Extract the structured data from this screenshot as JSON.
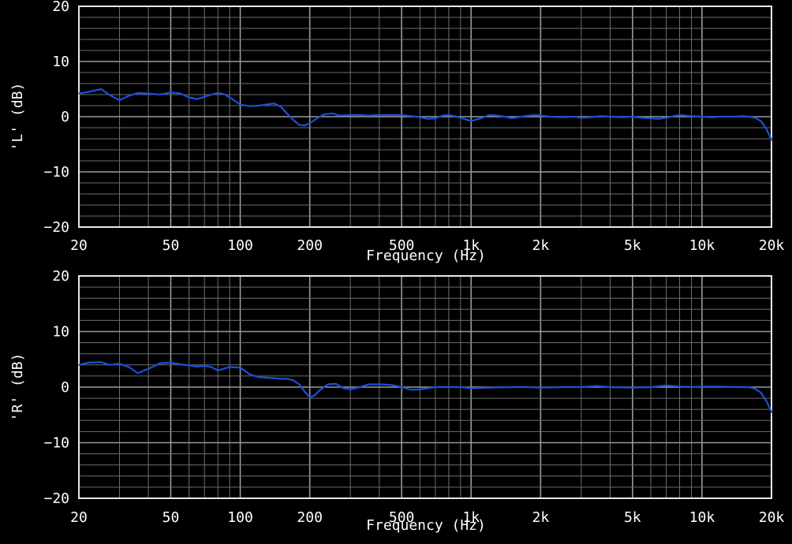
{
  "chart_data": [
    {
      "type": "line",
      "ylabel": "'L' (dB)",
      "xlabel": "Frequency (Hz)",
      "xscale": "log",
      "xlim": [
        20,
        20000
      ],
      "ylim": [
        -20,
        20
      ],
      "grid": true,
      "x_ticks": [
        20,
        50,
        100,
        200,
        500,
        1000,
        2000,
        5000,
        10000,
        20000
      ],
      "x_tick_labels": [
        "20",
        "50",
        "100",
        "200",
        "500",
        "1k",
        "2k",
        "5k",
        "10k",
        "20k"
      ],
      "y_ticks": [
        20,
        10,
        0,
        -10,
        -20
      ],
      "y_tick_labels": [
        "20",
        "10",
        "0",
        "−10",
        "−20"
      ],
      "series": [
        {
          "color": "#1f4fd8",
          "x": [
            20,
            22,
            25,
            27,
            30,
            33,
            36,
            40,
            45,
            50,
            55,
            60,
            65,
            70,
            75,
            80,
            85,
            90,
            100,
            110,
            120,
            130,
            140,
            150,
            160,
            170,
            180,
            190,
            200,
            215,
            230,
            250,
            270,
            300,
            330,
            360,
            400,
            450,
            500,
            550,
            600,
            650,
            700,
            750,
            800,
            850,
            900,
            1000,
            1100,
            1200,
            1300,
            1400,
            1500,
            1700,
            1900,
            2000,
            2200,
            2500,
            2800,
            3000,
            3300,
            3600,
            4000,
            4500,
            5000,
            5500,
            6000,
            6500,
            7000,
            7500,
            8000,
            8500,
            9000,
            10000,
            11000,
            12000,
            13000,
            14000,
            15000,
            16000,
            17000,
            18000,
            19000,
            20000
          ],
          "y": [
            4.2,
            4.5,
            5.0,
            4.0,
            3.0,
            3.8,
            4.3,
            4.2,
            4.0,
            4.4,
            4.2,
            3.5,
            3.2,
            3.6,
            4.0,
            4.3,
            4.1,
            3.5,
            2.2,
            1.9,
            2.0,
            2.2,
            2.4,
            1.8,
            0.5,
            -0.6,
            -1.5,
            -1.6,
            -1.2,
            -0.3,
            0.4,
            0.6,
            0.2,
            0.3,
            0.3,
            0.2,
            0.3,
            0.3,
            0.3,
            0.1,
            -0.1,
            -0.4,
            -0.3,
            0.2,
            0.3,
            0.1,
            -0.2,
            -0.8,
            -0.3,
            0.3,
            0.2,
            0.0,
            -0.3,
            0.1,
            0.3,
            0.2,
            0.0,
            -0.1,
            0.0,
            -0.2,
            -0.1,
            0.1,
            0.0,
            -0.1,
            0.0,
            -0.2,
            -0.3,
            -0.4,
            -0.2,
            0.1,
            0.3,
            0.2,
            0.1,
            0.0,
            -0.1,
            0.0,
            0.0,
            0.0,
            0.1,
            0.0,
            -0.2,
            -0.8,
            -2.2,
            -4.2
          ]
        }
      ]
    },
    {
      "type": "line",
      "ylabel": "'R' (dB)",
      "xlabel": "Frequency (Hz)",
      "xscale": "log",
      "xlim": [
        20,
        20000
      ],
      "ylim": [
        -20,
        20
      ],
      "grid": true,
      "x_ticks": [
        20,
        50,
        100,
        200,
        500,
        1000,
        2000,
        5000,
        10000,
        20000
      ],
      "x_tick_labels": [
        "20",
        "50",
        "100",
        "200",
        "500",
        "1k",
        "2k",
        "5k",
        "10k",
        "20k"
      ],
      "y_ticks": [
        20,
        10,
        0,
        -10,
        -20
      ],
      "y_tick_labels": [
        "20",
        "10",
        "0",
        "−10",
        "−20"
      ],
      "series": [
        {
          "color": "#1f4fd8",
          "x": [
            20,
            22,
            25,
            27,
            30,
            33,
            36,
            40,
            45,
            50,
            55,
            60,
            65,
            70,
            75,
            80,
            85,
            90,
            100,
            110,
            120,
            130,
            140,
            150,
            160,
            170,
            180,
            190,
            200,
            210,
            220,
            240,
            260,
            280,
            300,
            330,
            360,
            400,
            450,
            500,
            550,
            600,
            650,
            700,
            800,
            900,
            1000,
            1200,
            1500,
            1800,
            2000,
            2500,
            3000,
            3500,
            4000,
            5000,
            6000,
            7000,
            8000,
            9000,
            10000,
            12000,
            14000,
            15000,
            16000,
            17000,
            18000,
            19000,
            20000
          ],
          "y": [
            4.0,
            4.4,
            4.5,
            4.0,
            4.2,
            3.6,
            2.5,
            3.3,
            4.3,
            4.4,
            4.1,
            3.9,
            3.7,
            3.8,
            3.6,
            3.0,
            3.3,
            3.6,
            3.5,
            2.3,
            1.8,
            1.7,
            1.6,
            1.5,
            1.5,
            1.2,
            0.5,
            -0.8,
            -1.8,
            -1.5,
            -0.6,
            0.5,
            0.6,
            -0.2,
            -0.4,
            0.0,
            0.5,
            0.5,
            0.4,
            0.0,
            -0.5,
            -0.4,
            -0.2,
            0.0,
            0.0,
            0.0,
            -0.2,
            -0.1,
            0.0,
            0.0,
            -0.1,
            0.0,
            0.0,
            0.2,
            0.0,
            -0.1,
            0.0,
            0.3,
            0.1,
            0.0,
            0.1,
            0.1,
            0.0,
            0.0,
            0.0,
            -0.3,
            -1.0,
            -2.5,
            -4.5
          ]
        }
      ]
    }
  ]
}
